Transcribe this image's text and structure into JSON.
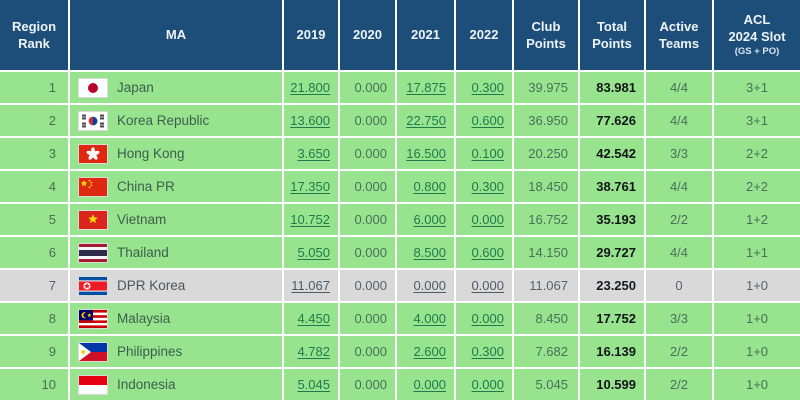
{
  "colors": {
    "header_bg": "#1d4e79",
    "row_green": "#98e48e",
    "row_gray": "#d9d9d9",
    "link_green": "#1f7a4e",
    "link_gray": "#4d5a68",
    "total_text": "#121518"
  },
  "table": {
    "headers": {
      "rank": [
        "Region",
        "Rank"
      ],
      "ma": "MA",
      "y2019": "2019",
      "y2020": "2020",
      "y2021": "2021",
      "y2022": "2022",
      "club": [
        "Club",
        "Points"
      ],
      "total": [
        "Total",
        "Points"
      ],
      "active": [
        "Active",
        "Teams"
      ],
      "acl": [
        "ACL",
        "2024 Slot"
      ],
      "acl_sub": "(GS + PO)"
    },
    "rows": [
      {
        "rank": "1",
        "ma": "Japan",
        "flag": "japan-flag",
        "y2019": "21.800",
        "y2020": "0.000",
        "y2021": "17.875",
        "y2022": "0.300",
        "club": "39.975",
        "total": "83.981",
        "active": "4/4",
        "acl": "3+1",
        "highlighted": false
      },
      {
        "rank": "2",
        "ma": "Korea Republic",
        "flag": "korea-republic-flag",
        "y2019": "13.600",
        "y2020": "0.000",
        "y2021": "22.750",
        "y2022": "0.600",
        "club": "36.950",
        "total": "77.626",
        "active": "4/4",
        "acl": "3+1",
        "highlighted": false
      },
      {
        "rank": "3",
        "ma": "Hong Kong",
        "flag": "hong-kong-flag",
        "y2019": "3.650",
        "y2020": "0.000",
        "y2021": "16.500",
        "y2022": "0.100",
        "club": "20.250",
        "total": "42.542",
        "active": "3/3",
        "acl": "2+2",
        "highlighted": false
      },
      {
        "rank": "4",
        "ma": "China PR",
        "flag": "china-pr-flag",
        "y2019": "17.350",
        "y2020": "0.000",
        "y2021": "0.800",
        "y2022": "0.300",
        "club": "18.450",
        "total": "38.761",
        "active": "4/4",
        "acl": "2+2",
        "highlighted": false
      },
      {
        "rank": "5",
        "ma": "Vietnam",
        "flag": "vietnam-flag",
        "y2019": "10.752",
        "y2020": "0.000",
        "y2021": "6.000",
        "y2022": "0.000",
        "club": "16.752",
        "total": "35.193",
        "active": "2/2",
        "acl": "1+2",
        "highlighted": false
      },
      {
        "rank": "6",
        "ma": "Thailand",
        "flag": "thailand-flag",
        "y2019": "5.050",
        "y2020": "0.000",
        "y2021": "8.500",
        "y2022": "0.600",
        "club": "14.150",
        "total": "29.727",
        "active": "4/4",
        "acl": "1+1",
        "highlighted": false
      },
      {
        "rank": "7",
        "ma": "DPR Korea",
        "flag": "dpr-korea-flag",
        "y2019": "11.067",
        "y2020": "0.000",
        "y2021": "0.000",
        "y2022": "0.000",
        "club": "11.067",
        "total": "23.250",
        "active": "0",
        "acl": "1+0",
        "highlighted": true
      },
      {
        "rank": "8",
        "ma": "Malaysia",
        "flag": "malaysia-flag",
        "y2019": "4.450",
        "y2020": "0.000",
        "y2021": "4.000",
        "y2022": "0.000",
        "club": "8.450",
        "total": "17.752",
        "active": "3/3",
        "acl": "1+0",
        "highlighted": false
      },
      {
        "rank": "9",
        "ma": "Philippines",
        "flag": "philippines-flag",
        "y2019": "4.782",
        "y2020": "0.000",
        "y2021": "2.600",
        "y2022": "0.300",
        "club": "7.682",
        "total": "16.139",
        "active": "2/2",
        "acl": "1+0",
        "highlighted": false
      },
      {
        "rank": "10",
        "ma": "Indonesia",
        "flag": "indonesia-flag",
        "y2019": "5.045",
        "y2020": "0.000",
        "y2021": "0.000",
        "y2022": "0.000",
        "club": "5.045",
        "total": "10.599",
        "active": "2/2",
        "acl": "1+0",
        "highlighted": false
      }
    ]
  }
}
